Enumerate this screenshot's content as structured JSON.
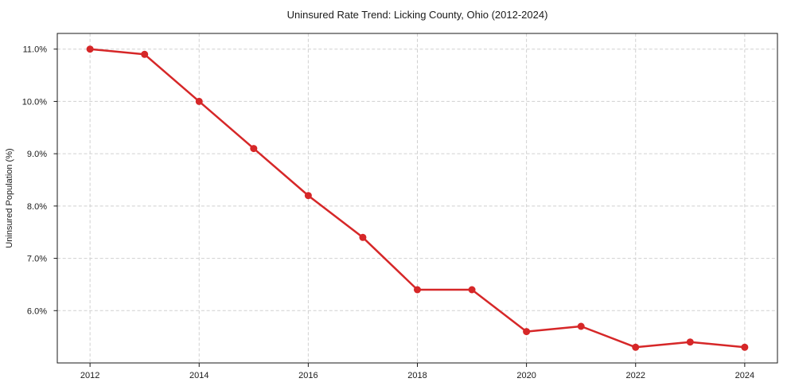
{
  "chart_data": {
    "type": "line",
    "title": "Uninsured Rate Trend: Licking County, Ohio (2012-2024)",
    "xlabel": "",
    "ylabel": "Uninsured Population (%)",
    "x": [
      2012,
      2013,
      2014,
      2015,
      2016,
      2017,
      2018,
      2019,
      2020,
      2021,
      2022,
      2023,
      2024
    ],
    "values": [
      11.0,
      10.9,
      10.0,
      9.1,
      8.2,
      7.4,
      6.4,
      6.4,
      5.6,
      5.7,
      5.3,
      5.4,
      5.3
    ],
    "xticks": [
      2012,
      2014,
      2016,
      2018,
      2020,
      2022,
      2024
    ],
    "xtick_labels": [
      "2012",
      "2014",
      "2016",
      "2018",
      "2020",
      "2022",
      "2024"
    ],
    "yticks": [
      6.0,
      7.0,
      8.0,
      9.0,
      10.0,
      11.0
    ],
    "ytick_labels": [
      "6.0%",
      "7.0%",
      "8.0%",
      "9.0%",
      "10.0%",
      "11.0%"
    ],
    "xlim": [
      2011.4,
      2024.6
    ],
    "ylim": [
      5.0,
      11.3
    ],
    "grid": true,
    "grid_style": "dashed",
    "legend": false,
    "marker": "circle",
    "marker_radius": 4.5,
    "line_width": 2.5,
    "colors": {
      "line": "#d62728",
      "grid": "#d0d0d0",
      "spine": "#1a1a1a",
      "text": "#1a1a1a"
    }
  }
}
